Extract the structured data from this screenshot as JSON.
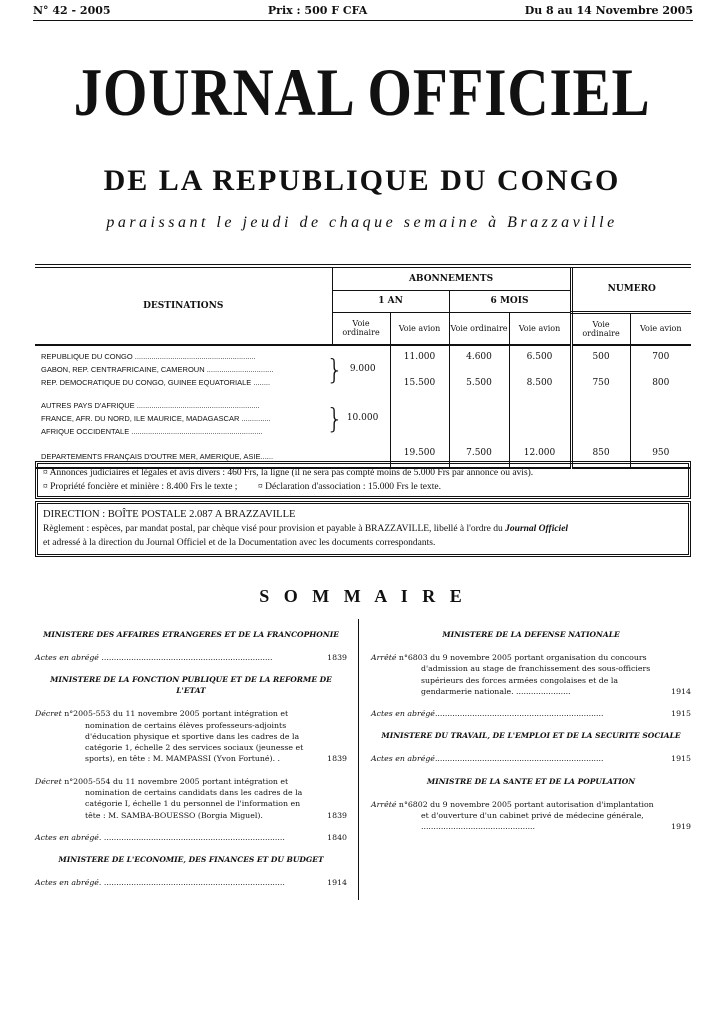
{
  "header": {
    "number": "N° 42 - 2005",
    "price": "Prix : 500 F CFA",
    "date": "Du 8 au 14 Novembre 2005"
  },
  "masthead": {
    "title": "JOURNAL OFFICIEL",
    "subtitle": "DE LA REPUBLIQUE DU CONGO",
    "tagline": "paraissant le jeudi de chaque semaine à Brazzaville"
  },
  "rates": {
    "destinations": "DESTINATIONS",
    "abonnements": "ABONNEMENTS",
    "one_year": "1 AN",
    "six_months": "6 MOIS",
    "numero": "NUMERO",
    "voie_ordinaire": "Voie ordinaire",
    "voie_avion": "Voie avion",
    "group1": {
      "lines": [
        "REPUBLIQUE DU CONGO ..........................................................",
        "GABON, REP. CENTRAFRICAINE, CAMEROUN ................................",
        "REP. DEMOCRATIQUE DU CONGO, GUINEE EQUATORIALE ........"
      ],
      "year_ordinaire": "9.000",
      "row_a": [
        "11.000",
        "4.600",
        "6.500",
        "500",
        "700"
      ],
      "row_b": [
        "15.500",
        "5.500",
        "8.500",
        "750",
        "800"
      ]
    },
    "group2": {
      "lines": [
        "AUTRES PAYS D'AFRIQUE ...........................................................",
        "FRANCE, AFR. DU NORD, ILE MAURICE, MADAGASCAR ..............",
        "AFRIQUE OCCIDENTALE ..............................................................."
      ],
      "year_ordinaire": "10.000"
    },
    "group3": {
      "label": "DEPARTEMENTS FRANÇAIS D'OUTRE MER, AMERIQUE, ASIE......",
      "values": [
        "19.500",
        "7.500",
        "12.000",
        "850",
        "950"
      ]
    }
  },
  "notices": {
    "annonces": "¤ Annonces judiciaires et légales et avis divers : 460 Frs, la ligne (il ne sera pas compté moins de 5.000 Frs par annonce ou avis).",
    "propriete": "¤ Propriété foncière et minière : 8.400 Frs le texte ;",
    "declaration": "¤ Déclaration d'association : 15.000 Frs le texte.",
    "direction": "DIRECTION : BOÎTE POSTALE 2.087 A BRAZZAVILLE",
    "reglement": "Règlement : espèces, par mandat postal, par chèque visé pour provision et payable à BRAZZAVILLE, libellé à l'ordre du",
    "reglement_em": "Journal Officiel",
    "reglement_end": "et adressé à la direction du Journal Officiel et de la Documentation avec les documents correspondants."
  },
  "sommaire": {
    "title": "S O M M A I R E",
    "left": [
      {
        "ministry": "MINISTERE DES AFFAIRES ETRANGERES ET DE LA FRANCOPHONIE",
        "entries": [
          {
            "type": "Actes en abrégé",
            "text": " .....................................................................",
            "page": "1839"
          }
        ]
      },
      {
        "ministry": "MINISTERE DE LA FONCTION PUBLIQUE ET DE LA REFORME DE L'ETAT",
        "entries": [
          {
            "type": "Décret",
            "text": " n°2005-553 du 11 novembre 2005 portant intégration et nomination de certains élèves professeurs-adjoints d'éducation physique et sportive dans les cadres de la catégorie 1, échelle 2 des services sociaux (jeunesse et sports), en tête : M. MAMPASSI (Yvon Fortuné). .",
            "page": "1839"
          },
          {
            "type": "Décret",
            "text": " n°2005-554 du 11 novembre 2005 portant intégration et nomination de certains candidats dans les cadres de la catégorie I, échelle 1 du personnel de l'information en tête : M. SAMBA-BOUESSO (Borgia Miguel).",
            "page": "1839"
          },
          {
            "type": "Actes en abrégé.",
            "text": " .........................................................................",
            "page": "1840"
          }
        ]
      },
      {
        "ministry": "MINISTERE DE L'ECONOMIE, DES FINANCES ET DU BUDGET",
        "entries": [
          {
            "type": "Actes en abrégé.",
            "text": " .........................................................................",
            "page": "1914"
          }
        ]
      }
    ],
    "right": [
      {
        "ministry": "MINISTERE DE LA DEFENSE NATIONALE",
        "entries": [
          {
            "type": "Arrêté",
            "text": " n°6803 du 9 novembre 2005 portant organisation du concours d'admission au stage de franchissement des sous-officiers supérieurs des forces armées congolaises et de la gendarmerie nationale. ......................",
            "page": "1914"
          },
          {
            "type": "Actes en abrégé",
            "text": "....................................................................",
            "page": "1915"
          }
        ]
      },
      {
        "ministry": "MINISTERE DU TRAVAIL, DE L'EMPLOI ET DE LA SECURITE SOCIALE",
        "entries": [
          {
            "type": "Actes en abrégé",
            "text": "....................................................................",
            "page": "1915"
          }
        ]
      },
      {
        "ministry": "MINISTRE DE LA SANTE ET DE LA POPULATION",
        "entries": [
          {
            "type": "Arrêté",
            "text": " n°6802 du 9 novembre 2005 portant autorisation d'implantation et d'ouverture d'un cabinet privé de médecine générale, ..............................................",
            "page": "1919"
          }
        ]
      }
    ]
  }
}
